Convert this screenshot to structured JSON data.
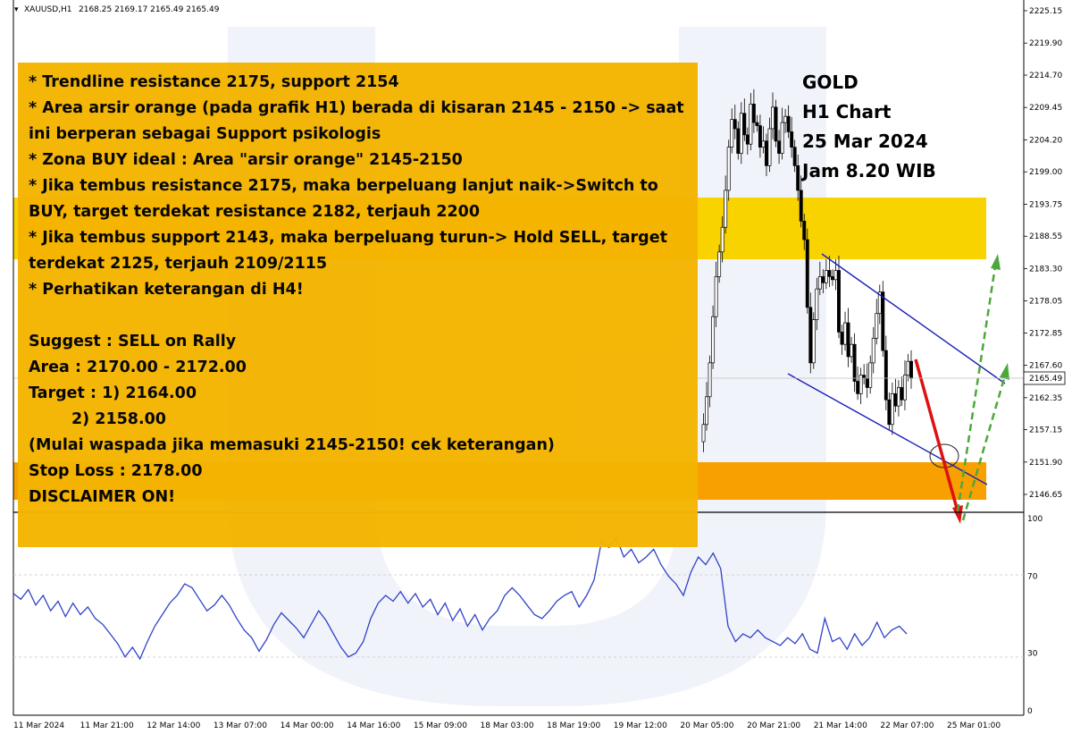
{
  "header": {
    "symbol_label": "XAUUSD,H1",
    "ohlc": "2168.25 2169.17 2165.49 2165.49"
  },
  "title_block": {
    "line1": "GOLD",
    "line2": "H1 Chart",
    "line3": "25 Mar 2024",
    "line4": "Jam 8.20 WIB"
  },
  "note": {
    "lines": [
      "* Trendline resistance 2175, support 2154",
      "* Area arsir orange (pada grafik H1) berada di kisaran 2145 - 2150 -> saat ini berperan sebagai Support psikologis",
      "* Zona BUY ideal : Area \"arsir orange\" 2145-2150",
      "* Jika tembus resistance 2175, maka berpeluang lanjut naik->Switch to BUY, target terdekat resistance 2182, terjauh 2200",
      "* Jika tembus support 2143, maka berpeluang turun-> Hold SELL, target terdekat 2125, terjauh 2109/2115",
      "* Perhatikan keterangan di H4!"
    ],
    "suggest": "Suggest : SELL on Rally",
    "area": "Area : 2170.00 - 2172.00",
    "target1": "Target : 1) 2164.00",
    "target2": "2) 2158.00",
    "warning": "(Mulai waspada jika memasuki 2145-2150! cek keterangan)",
    "stop_loss": "Stop Loss : 2178.00",
    "disclaimer": "DISCLAIMER ON!"
  },
  "chart_data": [
    {
      "type": "candlestick",
      "symbol": "XAUUSD",
      "timeframe": "H1",
      "current_price": 2165.49,
      "current_price_label": "2165.49",
      "y_ticks": [
        "2225.15",
        "2219.90",
        "2214.70",
        "2209.45",
        "2204.20",
        "2199.00",
        "2193.75",
        "2188.55",
        "2183.30",
        "2178.05",
        "2172.85",
        "2167.60",
        "2162.35",
        "2157.15",
        "2151.90",
        "2146.65"
      ],
      "ylim": [
        2144.5,
        2226.5
      ],
      "x_ticks": [
        "11 Mar 2024",
        "11 Mar 21:00",
        "12 Mar 14:00",
        "13 Mar 07:00",
        "14 Mar 00:00",
        "14 Mar 16:00",
        "15 Mar 09:00",
        "18 Mar 03:00",
        "18 Mar 19:00",
        "19 Mar 12:00",
        "20 Mar 05:00",
        "20 Mar 21:00",
        "21 Mar 14:00",
        "22 Mar 07:00",
        "25 Mar 01:00"
      ],
      "zones": [
        {
          "name": "resistance-zone",
          "from": 2185.0,
          "to": 2195.0,
          "color": "#f9d300"
        },
        {
          "name": "support-zone",
          "from": 2145.0,
          "to": 2150.5,
          "color": "#f7a000"
        }
      ],
      "closes": [
        2155.2,
        2158.0,
        2162.5,
        2168.0,
        2175.5,
        2182.0,
        2186.0,
        2190.0,
        2196.0,
        2203.0,
        2207.5,
        2206.0,
        2202.0,
        2208.5,
        2205.0,
        2203.5,
        2210.0,
        2207.0,
        2206.5,
        2203.0,
        2204.0,
        2200.0,
        2206.0,
        2209.5,
        2204.0,
        2202.0,
        2207.0,
        2208.0,
        2205.5,
        2203.0,
        2200.0,
        2196.0,
        2191.0,
        2188.0,
        2177.0,
        2168.0,
        2175.0,
        2180.0,
        2182.0,
        2181.0,
        2183.0,
        2182.0,
        2181.5,
        2183.0,
        2173.0,
        2171.0,
        2174.5,
        2169.0,
        2171.0,
        2165.0,
        2163.0,
        2166.0,
        2165.5,
        2164.0,
        2168.0,
        2172.0,
        2176.0,
        2179.5,
        2170.0,
        2162.0,
        2158.0,
        2163.0,
        2161.0,
        2164.0,
        2162.0,
        2166.0,
        2168.25,
        2165.49
      ],
      "channel": {
        "upper": [
          [
            2183.6,
            2169.6
          ]
        ],
        "lower": [
          [
            2168.6,
            2151.2
          ]
        ]
      },
      "arrows": [
        {
          "name": "sell-arrow",
          "color": "#dd1111",
          "from": 2168.0,
          "to": 2142.0
        },
        {
          "name": "buy-arrow-1",
          "color": "#4ca83a",
          "from": 2144.0,
          "to": 2185.5
        },
        {
          "name": "buy-arrow-2",
          "color": "#4ca83a",
          "from": 2143.0,
          "to": 2167.0
        }
      ]
    },
    {
      "type": "line",
      "name": "oscillator",
      "ylim": [
        0,
        100
      ],
      "y_ticks": [
        "100",
        "70",
        "30",
        "0"
      ],
      "values": [
        61,
        58,
        63,
        55,
        60,
        52,
        57,
        49,
        56,
        50,
        54,
        48,
        45,
        40,
        35,
        28,
        33,
        27,
        36,
        44,
        50,
        56,
        60,
        66,
        64,
        58,
        52,
        55,
        60,
        55,
        48,
        42,
        38,
        31,
        37,
        45,
        51,
        47,
        43,
        38,
        45,
        52,
        47,
        40,
        33,
        28,
        30,
        36,
        48,
        56,
        60,
        57,
        62,
        56,
        61,
        54,
        58,
        50,
        56,
        47,
        53,
        44,
        50,
        42,
        48,
        52,
        60,
        64,
        60,
        55,
        50,
        48,
        52,
        57,
        60,
        62,
        54,
        60,
        68,
        88,
        85,
        90,
        80,
        84,
        77,
        80,
        84,
        76,
        70,
        66,
        60,
        72,
        80,
        76,
        82,
        74,
        44,
        36,
        40,
        38,
        42,
        38,
        36,
        34,
        38,
        35,
        40,
        32,
        30,
        48,
        36,
        38,
        32,
        40,
        34,
        38,
        46,
        38,
        42,
        44,
        40
      ]
    }
  ],
  "colors": {
    "candle": "#000000",
    "channel": "#1a20b5",
    "oscillator_line": "#3042c8",
    "note_bg": "#f4b400",
    "watermark": "#8fa0d8"
  }
}
